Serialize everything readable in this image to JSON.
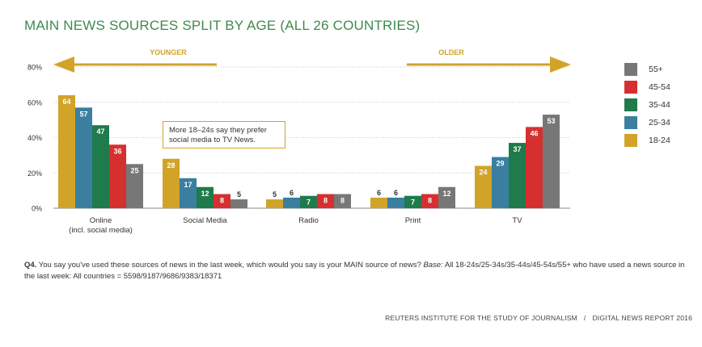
{
  "title": "MAIN NEWS SOURCES SPLIT BY AGE (ALL 26 COUNTRIES)",
  "arrows": {
    "left_label": "YOUNGER",
    "right_label": "OLDER"
  },
  "callout": "More 18–24s say they prefer social media to TV News.",
  "question": {
    "prefix": "Q4.",
    "text": "You say you've used these sources of news in the last week, which would you say is your MAIN source of news?",
    "base_label": "Base:",
    "base_text": "All 18-24s/25-34s/35-44s/45-54s/55+ who have used a news source in the last week: All countries = 5598/9187/9686/9383/18371"
  },
  "footer": {
    "org": "REUTERS INSTITUTE FOR THE STUDY OF JOURNALISM",
    "separator": "/",
    "report": "DIGITAL NEWS REPORT 2016"
  },
  "colors": {
    "title": "#3f8a4e",
    "arrow": "#d1a328",
    "grid": "#c8c8c8"
  },
  "chart_data": {
    "type": "bar",
    "title": "MAIN NEWS SOURCES SPLIT BY AGE (ALL 26 COUNTRIES)",
    "categories": [
      "Online (incl. social media)",
      "Social Media",
      "Radio",
      "Print",
      "TV"
    ],
    "category_labels": [
      [
        "Online",
        "(incl. social media)"
      ],
      [
        "Social Media"
      ],
      [
        "Radio"
      ],
      [
        "Print"
      ],
      [
        "TV"
      ]
    ],
    "ylim": [
      0,
      80
    ],
    "yticks": [
      0,
      20,
      40,
      60,
      80
    ],
    "ytick_labels": [
      "0%",
      "20%",
      "40%",
      "60%",
      "80%"
    ],
    "grid": true,
    "legend_position": "right",
    "legend_order": [
      "55+",
      "45-54",
      "35-44",
      "25-34",
      "18-24"
    ],
    "series": [
      {
        "name": "18-24",
        "color": "#d1a328",
        "values": [
          64,
          28,
          5,
          6,
          24
        ]
      },
      {
        "name": "25-34",
        "color": "#3a7fa0",
        "values": [
          57,
          17,
          6,
          6,
          29
        ]
      },
      {
        "name": "35-44",
        "color": "#1f7a4c",
        "values": [
          47,
          12,
          7,
          7,
          37
        ]
      },
      {
        "name": "45-54",
        "color": "#d62f2f",
        "values": [
          36,
          8,
          8,
          8,
          46
        ]
      },
      {
        "name": "55+",
        "color": "#777777",
        "values": [
          25,
          5,
          8,
          12,
          53
        ]
      }
    ]
  }
}
